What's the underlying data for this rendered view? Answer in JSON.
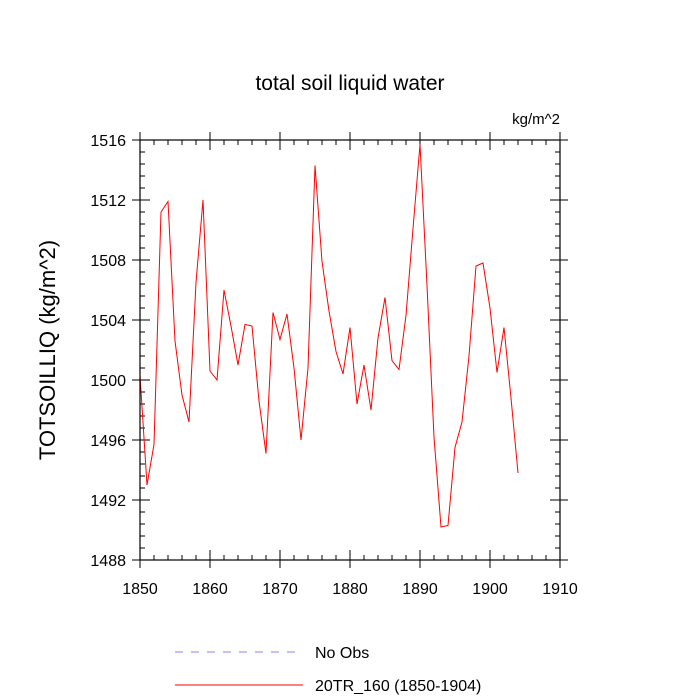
{
  "chart_data": {
    "type": "line",
    "title": "total soil liquid water",
    "units": "kg/m^2",
    "xlabel": "",
    "ylabel": "TOTSOILLIQ  (kg/m^2)",
    "xlim": [
      1850,
      1910
    ],
    "ylim": [
      1488,
      1516
    ],
    "x_ticks": [
      1850,
      1860,
      1870,
      1880,
      1890,
      1900,
      1910
    ],
    "y_ticks": [
      1488,
      1492,
      1496,
      1500,
      1504,
      1508,
      1512,
      1516
    ],
    "x_minor_step": 2,
    "y_minor_step": 0.8,
    "series": [
      {
        "name": "20TR_160 (1850-1904)",
        "color": "#ff0000",
        "style": "solid",
        "x": [
          1850,
          1851,
          1852,
          1853,
          1854,
          1855,
          1856,
          1857,
          1858,
          1859,
          1860,
          1861,
          1862,
          1863,
          1864,
          1865,
          1866,
          1867,
          1868,
          1869,
          1870,
          1871,
          1872,
          1873,
          1874,
          1875,
          1876,
          1877,
          1878,
          1879,
          1880,
          1881,
          1882,
          1883,
          1884,
          1885,
          1886,
          1887,
          1888,
          1889,
          1890,
          1891,
          1892,
          1893,
          1894,
          1895,
          1896,
          1897,
          1898,
          1899,
          1900,
          1901,
          1902,
          1903,
          1904
        ],
        "values": [
          1500.3,
          1493.0,
          1495.7,
          1511.2,
          1511.9,
          1502.6,
          1499.0,
          1497.2,
          1506.5,
          1512.0,
          1500.6,
          1500.0,
          1506.0,
          1503.6,
          1501.0,
          1503.7,
          1503.6,
          1498.6,
          1495.1,
          1504.5,
          1502.7,
          1504.4,
          1500.8,
          1496.0,
          1500.8,
          1514.3,
          1507.9,
          1504.6,
          1501.9,
          1500.4,
          1503.5,
          1498.4,
          1501.0,
          1498.0,
          1502.8,
          1505.5,
          1501.3,
          1500.7,
          1504.3,
          1510.1,
          1515.7,
          1506.3,
          1496.2,
          1490.2,
          1490.3,
          1495.5,
          1497.2,
          1501.6,
          1507.6,
          1507.8,
          1504.8,
          1500.5,
          1503.5,
          1498.8,
          1493.8
        ]
      }
    ],
    "legend": [
      {
        "label": "No Obs",
        "color": "#8080ff",
        "style": "dashed"
      },
      {
        "label": "20TR_160 (1850-1904)",
        "color": "#ff0000",
        "style": "solid"
      }
    ]
  }
}
